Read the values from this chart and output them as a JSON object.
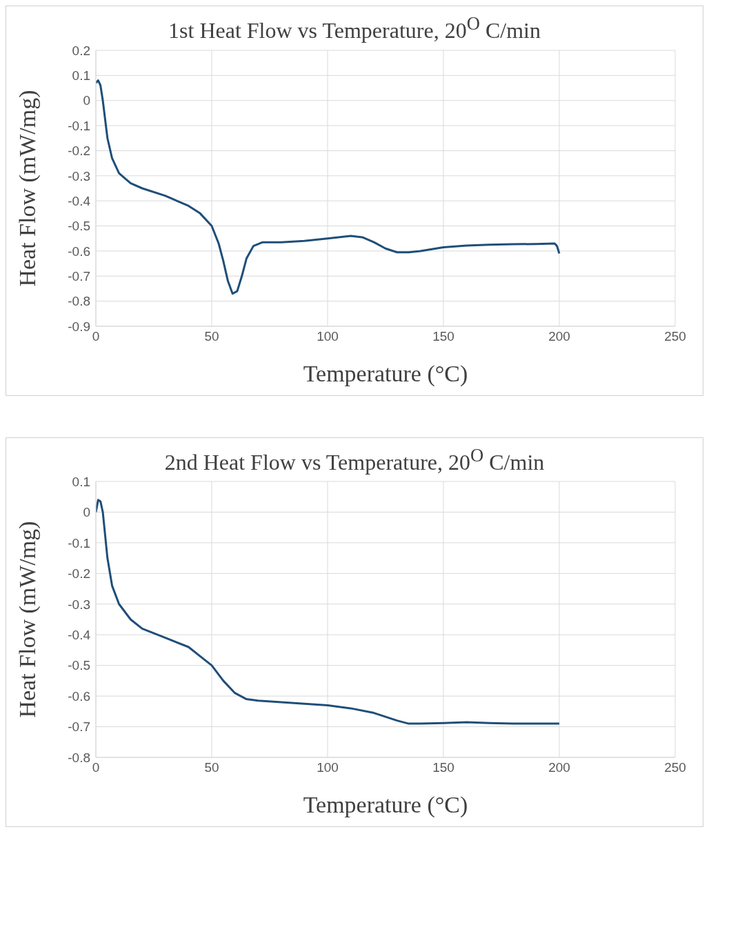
{
  "chart_data": [
    {
      "type": "line",
      "title": "1st Heat Flow vs Temperature, 20$^{O}$ C/min",
      "xlabel": "Temperature (°C)",
      "ylabel": "Heat Flow (mW/mg)",
      "xlim": [
        0,
        250
      ],
      "xticks": [
        0,
        50,
        100,
        150,
        200,
        250
      ],
      "ylim": [
        -0.9,
        0.2
      ],
      "yticks": [
        -0.9,
        -0.8,
        -0.7,
        -0.6,
        -0.5,
        -0.4,
        -0.3,
        -0.2,
        -0.1,
        0,
        0.1,
        0.2
      ],
      "grid": true,
      "marker": "none",
      "line_style": "solid",
      "series": [
        {
          "color": "#1f4e79",
          "x": [
            0,
            1,
            2,
            3,
            5,
            7,
            10,
            15,
            20,
            30,
            40,
            45,
            50,
            53,
            55,
            57,
            59,
            61,
            63,
            65,
            68,
            72,
            80,
            90,
            100,
            110,
            115,
            120,
            125,
            130,
            135,
            140,
            150,
            160,
            170,
            180,
            190,
            198,
            199,
            200
          ],
          "values": [
            0.07,
            0.08,
            0.06,
            0.0,
            -0.15,
            -0.23,
            -0.29,
            -0.33,
            -0.35,
            -0.38,
            -0.42,
            -0.45,
            -0.5,
            -0.57,
            -0.64,
            -0.72,
            -0.77,
            -0.76,
            -0.7,
            -0.63,
            -0.58,
            -0.565,
            -0.565,
            -0.56,
            -0.55,
            -0.54,
            -0.545,
            -0.565,
            -0.59,
            -0.605,
            -0.605,
            -0.6,
            -0.585,
            -0.578,
            -0.575,
            -0.573,
            -0.572,
            -0.57,
            -0.58,
            -0.61
          ]
        }
      ]
    },
    {
      "type": "line",
      "title": "2nd Heat Flow vs Temperature, 20$^{O}$ C/min",
      "xlabel": "Temperature (°C)",
      "ylabel": "Heat Flow (mW/mg)",
      "xlim": [
        0,
        250
      ],
      "xticks": [
        0,
        50,
        100,
        150,
        200,
        250
      ],
      "ylim": [
        -0.8,
        0.1
      ],
      "yticks": [
        -0.8,
        -0.7,
        -0.6,
        -0.5,
        -0.4,
        -0.3,
        -0.2,
        -0.1,
        0,
        0.1
      ],
      "grid": true,
      "marker": "none",
      "line_style": "solid",
      "series": [
        {
          "color": "#1f4e79",
          "x": [
            0,
            1,
            2,
            3,
            5,
            7,
            10,
            15,
            20,
            30,
            40,
            45,
            50,
            55,
            60,
            65,
            70,
            80,
            90,
            100,
            110,
            120,
            130,
            135,
            140,
            150,
            160,
            170,
            180,
            190,
            200
          ],
          "values": [
            0.0,
            0.04,
            0.035,
            0.0,
            -0.15,
            -0.24,
            -0.3,
            -0.35,
            -0.38,
            -0.41,
            -0.44,
            -0.47,
            -0.5,
            -0.55,
            -0.59,
            -0.61,
            -0.615,
            -0.62,
            -0.625,
            -0.63,
            -0.64,
            -0.655,
            -0.68,
            -0.69,
            -0.69,
            -0.688,
            -0.685,
            -0.688,
            -0.69,
            -0.69,
            -0.69
          ]
        }
      ]
    }
  ]
}
